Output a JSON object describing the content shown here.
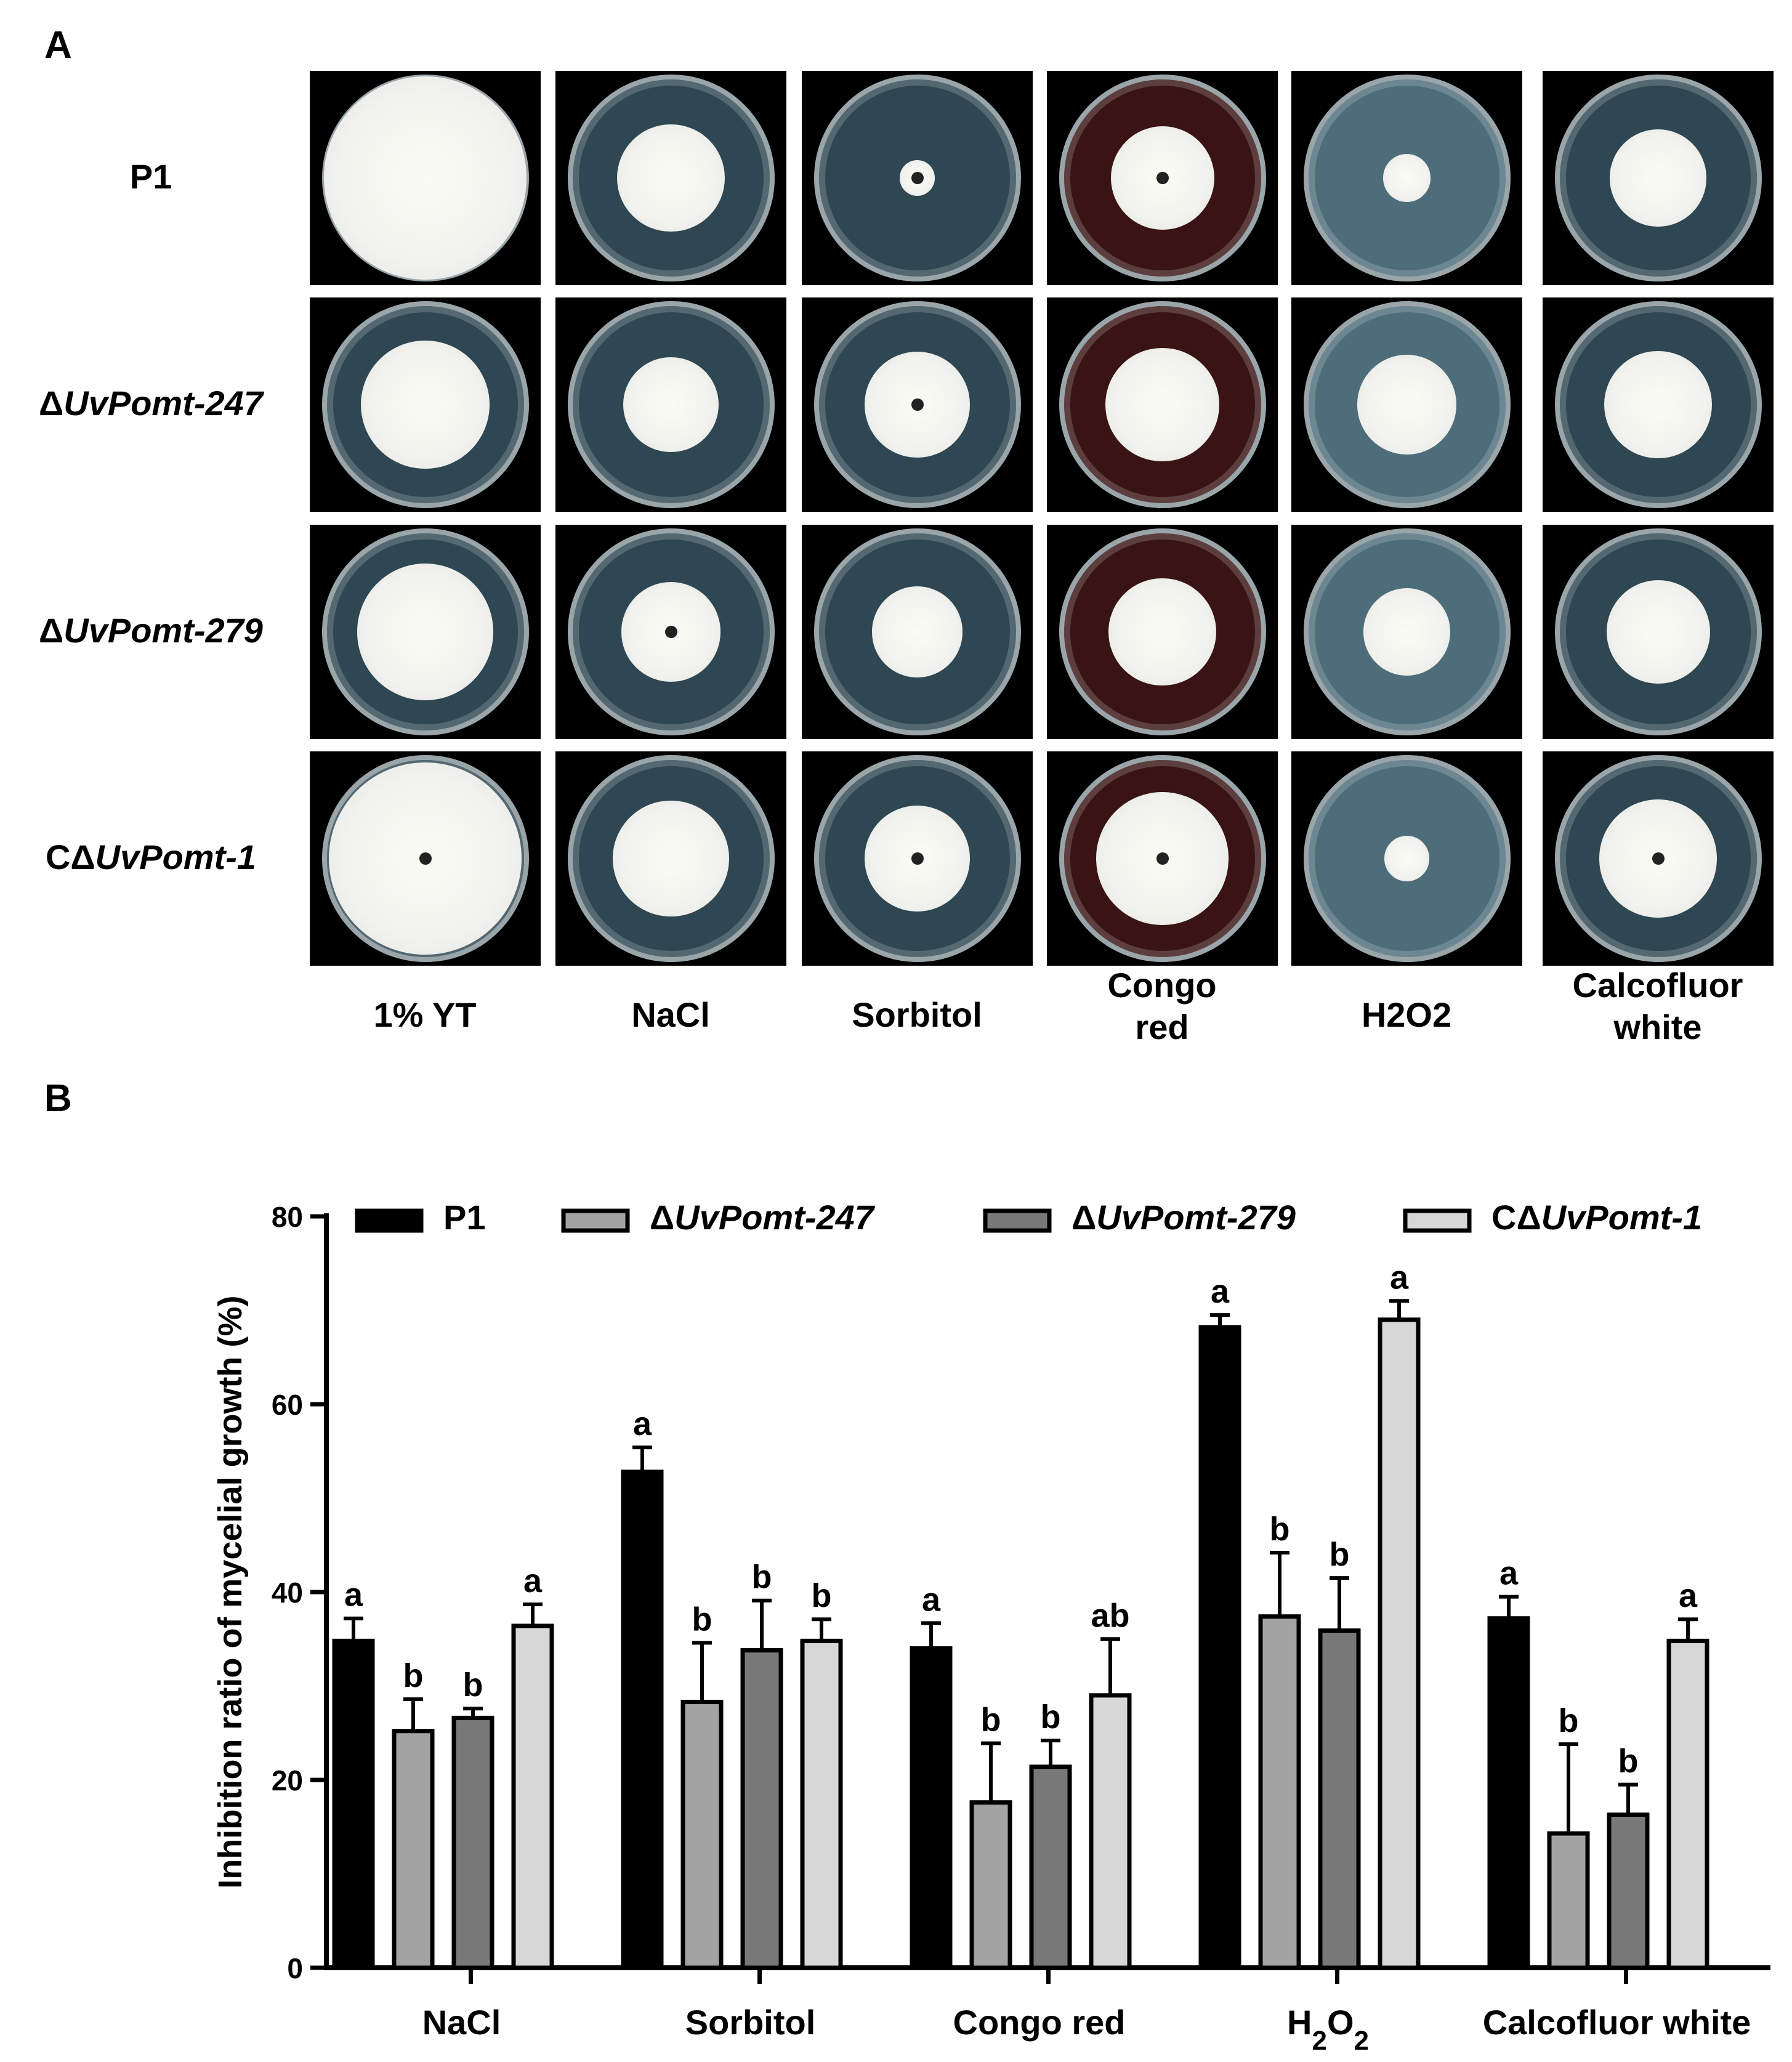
{
  "panel_a": {
    "label": "A",
    "rows": [
      {
        "prefix": "",
        "italic": "",
        "suffix": "P1"
      },
      {
        "prefix": "Δ",
        "italic": "UvPomt-247",
        "suffix": ""
      },
      {
        "prefix": "Δ",
        "italic": "UvPomt-279",
        "suffix": ""
      },
      {
        "prefix": "CΔ",
        "italic": "UvPomt-1",
        "suffix": ""
      }
    ],
    "columns": [
      {
        "line1": "1% YT",
        "line2": ""
      },
      {
        "line1": "NaCl",
        "line2": ""
      },
      {
        "line1": "Sorbitol",
        "line2": ""
      },
      {
        "line1": "Congo",
        "line2": "red"
      },
      {
        "line1": "H2O2",
        "line2": ""
      },
      {
        "line1": "Calcofluor",
        "line2": "white"
      }
    ],
    "plate_colors": {
      "agar": "#2e4752",
      "agar_h2o2": "#4d6d7a",
      "congo": "#3a1414",
      "colony": "#f2f2ee",
      "center": "#222222"
    }
  },
  "panel_b": {
    "label": "B"
  },
  "chart_data": {
    "type": "bar",
    "title": "",
    "xlabel": "",
    "ylabel": "Inhibition ratio of mycelial growth (%)",
    "ylim": [
      0,
      80
    ],
    "yticks": [
      0,
      20,
      40,
      60,
      80
    ],
    "categories": [
      "NaCl",
      "Sorbitol",
      "Congo red",
      "H2O2",
      "Calcofluor white"
    ],
    "legend_position": "top",
    "series": [
      {
        "name": "P1",
        "prefix": "",
        "italic": "",
        "suffix": "P1",
        "color": "#000000",
        "values": [
          34.8,
          52.8,
          34.0,
          68.2,
          37.2
        ],
        "errors": [
          2.4,
          2.6,
          2.7,
          1.3,
          2.3
        ],
        "letters": [
          "a",
          "a",
          "a",
          "a",
          "a"
        ]
      },
      {
        "name": "ΔUvPomt-247",
        "prefix": "Δ",
        "italic": "UvPomt-247",
        "suffix": "",
        "color": "#a3a3a3",
        "values": [
          25.2,
          28.3,
          17.6,
          37.4,
          14.3
        ],
        "errors": [
          3.4,
          6.3,
          6.3,
          6.8,
          9.5
        ],
        "letters": [
          "b",
          "b",
          "b",
          "b",
          "b"
        ]
      },
      {
        "name": "ΔUvPomt-279",
        "prefix": "Δ",
        "italic": "UvPomt-279",
        "suffix": "",
        "color": "#787878",
        "values": [
          26.6,
          33.8,
          21.4,
          35.9,
          16.3
        ],
        "errors": [
          1.0,
          5.3,
          2.8,
          5.6,
          3.2
        ],
        "letters": [
          "b",
          "b",
          "b",
          "b",
          "b"
        ]
      },
      {
        "name": "CΔUvPomt-1",
        "prefix": "CΔ",
        "italic": "UvPomt-1",
        "suffix": "",
        "color": "#d7d7d7",
        "values": [
          36.4,
          34.8,
          29.0,
          69.0,
          34.8
        ],
        "errors": [
          2.3,
          2.3,
          6.0,
          2.0,
          2.3
        ],
        "letters": [
          "a",
          "b",
          "ab",
          "a",
          "a"
        ]
      }
    ]
  }
}
